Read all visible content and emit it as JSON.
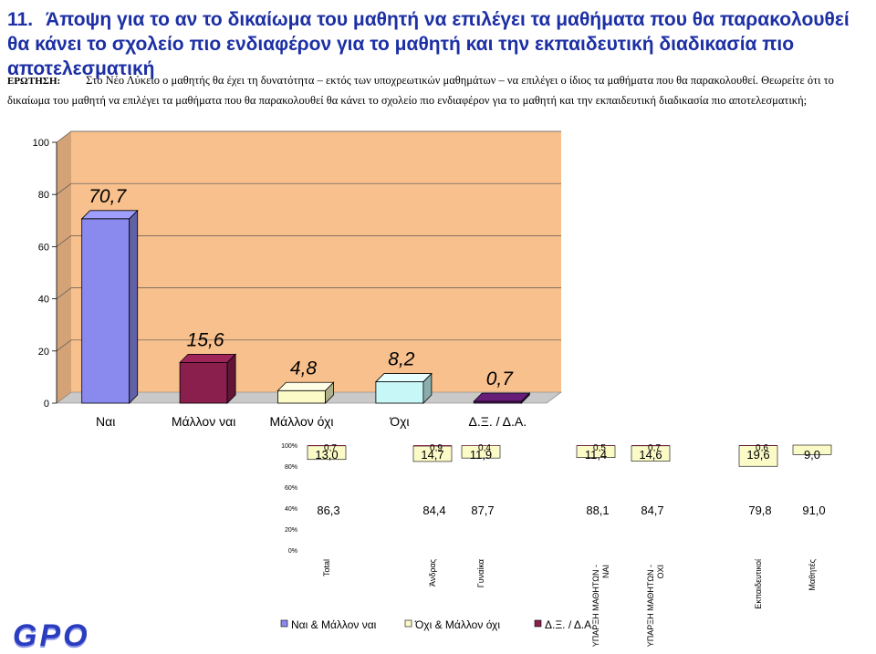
{
  "title": {
    "number": "11.",
    "text": "Άποψη για το αν το δικαίωμα του μαθητή να επιλέγει τα μαθήματα που θα παρακολουθεί θα κάνει το σχολείο πιο ενδιαφέρον για το μαθητή και την εκπαιδευτική διαδικασία πιο αποτελεσματική"
  },
  "question": {
    "label": "ΕΡΩΤΗΣΗ:",
    "text": "Στο Νέο Λύκειο ο μαθητής θα έχει τη δυνατότητα – εκτός των υποχρεωτικών μαθημάτων – να επιλέγει ο ίδιος τα μαθήματα που θα παρακολουθεί. Θεωρείτε ότι το δικαίωμα του μαθητή να επιλέγει τα μαθήματα που θα παρακολουθεί θα κάνει το σχολείο πιο ενδιαφέρον για το μαθητή και την εκπαιδευτική διαδικασία πιο αποτελεσματική;"
  },
  "logo": {
    "text": "GPO"
  },
  "chart_data": [
    {
      "type": "bar",
      "categories": [
        "Ναι",
        "Μάλλον ναι",
        "Μάλλον όχι",
        "Όχι",
        "Δ.Ξ. / Δ.Α."
      ],
      "values": [
        70.7,
        15.6,
        4.8,
        8.2,
        0.7
      ],
      "value_labels": [
        "70,7",
        "15,6",
        "4,8",
        "8,2",
        "0,7"
      ],
      "colors": [
        "#8a8aee",
        "#8a1f4e",
        "#fbfbc8",
        "#c8f7f7",
        "#5a1a68"
      ],
      "ylim": [
        0,
        100
      ],
      "yticks": [
        "0",
        "20",
        "40",
        "60",
        "80",
        "100"
      ],
      "wall_color": "#f8c08c",
      "grid": true
    },
    {
      "type": "bar",
      "stacked": true,
      "percent": true,
      "categories": [
        "Total",
        "Άνδρας",
        "Γυναίκα",
        "ΥΠΑΡΞΗ ΜΑΘΗΤΩΝ - ΝΑΙ",
        "ΥΠΑΡΞΗ ΜΑΘΗΤΩΝ - ΟΧΙ",
        "Εκπαιδευτικοί",
        "Μαθητές"
      ],
      "yticks": [
        "0%",
        "20%",
        "40%",
        "60%",
        "80%",
        "100%"
      ],
      "series": [
        {
          "name": "Ναι & Μάλλον ναι",
          "color": "#8a8aee",
          "values": [
            86.3,
            84.4,
            87.7,
            88.1,
            84.7,
            79.8,
            91.0
          ],
          "labels": [
            "86,3",
            "84,4",
            "87,7",
            "88,1",
            "84,7",
            "79,8",
            "91,0"
          ]
        },
        {
          "name": "Όχι & Μάλλον όχι",
          "color": "#fbfbc8",
          "values": [
            13.0,
            14.7,
            11.9,
            11.4,
            14.6,
            19.6,
            9.0
          ],
          "labels": [
            "13,0",
            "14,7",
            "11,9",
            "11,4",
            "14,6",
            "19,6",
            "9,0"
          ]
        },
        {
          "name": "Δ.Ξ. / Δ.Α.",
          "color": "#8a1f4e",
          "values": [
            0.7,
            0.9,
            0.4,
            0.5,
            0.7,
            0.6,
            0.0
          ],
          "labels": [
            "0,7",
            "0,9",
            "0,4",
            "0,5",
            "0,7",
            "0,6",
            ""
          ]
        }
      ]
    }
  ]
}
